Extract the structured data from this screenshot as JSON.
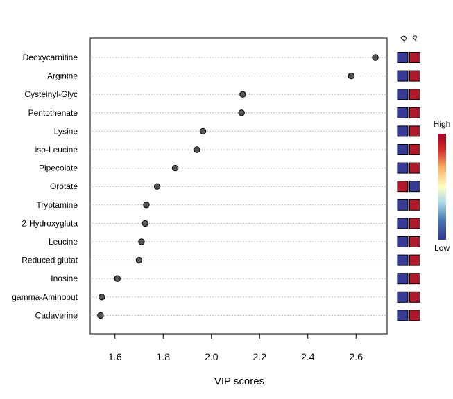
{
  "chart_data": {
    "type": "scatter",
    "xlabel": "VIP scores",
    "xlim": [
      1.5,
      2.72
    ],
    "xticks": [
      "1.6",
      "1.8",
      "2.0",
      "2.2",
      "2.4",
      "2.6"
    ],
    "items": [
      {
        "name": "Deoxycarnitine",
        "vip": 2.68,
        "D": "low",
        "P": "high"
      },
      {
        "name": "Arginine",
        "vip": 2.58,
        "D": "low",
        "P": "high"
      },
      {
        "name": "Cysteinyl-Glyc",
        "vip": 2.13,
        "D": "low",
        "P": "high"
      },
      {
        "name": "Pentothenate",
        "vip": 2.125,
        "D": "low",
        "P": "high"
      },
      {
        "name": "Lysine",
        "vip": 1.965,
        "D": "low",
        "P": "high"
      },
      {
        "name": "iso-Leucine",
        "vip": 1.94,
        "D": "low",
        "P": "high"
      },
      {
        "name": "Pipecolate",
        "vip": 1.85,
        "D": "low",
        "P": "high"
      },
      {
        "name": "Orotate",
        "vip": 1.775,
        "D": "high",
        "P": "low"
      },
      {
        "name": "Tryptamine",
        "vip": 1.73,
        "D": "low",
        "P": "high"
      },
      {
        "name": "2-Hydroxygluta",
        "vip": 1.725,
        "D": "low",
        "P": "high"
      },
      {
        "name": "Leucine",
        "vip": 1.71,
        "D": "low",
        "P": "high"
      },
      {
        "name": "Reduced glutat",
        "vip": 1.7,
        "D": "low",
        "P": "high"
      },
      {
        "name": "Inosine",
        "vip": 1.61,
        "D": "low",
        "P": "high"
      },
      {
        "name": "gamma-Aminobut",
        "vip": 1.545,
        "D": "low",
        "P": "high"
      },
      {
        "name": "Cadaverine",
        "vip": 1.54,
        "D": "low",
        "P": "high"
      }
    ],
    "groups": [
      "D",
      "P"
    ],
    "legend": {
      "high_label": "High",
      "low_label": "Low"
    },
    "colors": {
      "high": "#b2182b",
      "low": "#353b97",
      "point": "#555555"
    },
    "grid": true
  }
}
